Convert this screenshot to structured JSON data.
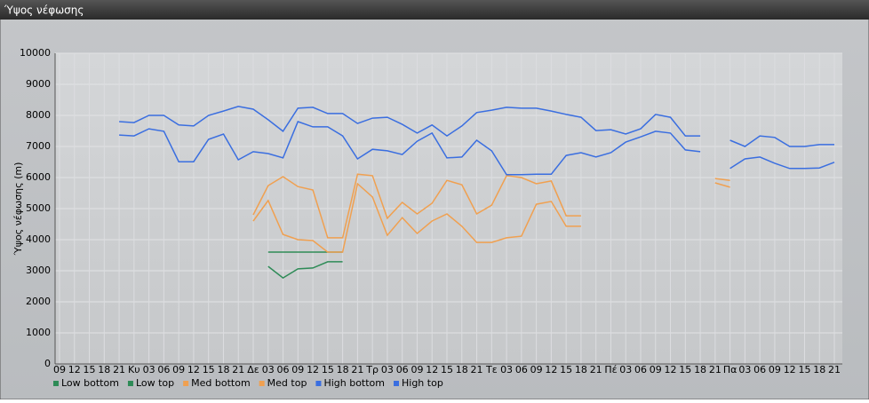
{
  "chart_data": {
    "type": "line",
    "title": "Ύψος νέφωσης",
    "y_label": "Ύψος νέφωσης (m)",
    "categories": [
      "09",
      "12",
      "15",
      "18",
      "21",
      "Κυ",
      "03",
      "06",
      "09",
      "12",
      "15",
      "18",
      "21",
      "Δε",
      "03",
      "06",
      "09",
      "12",
      "15",
      "18",
      "21",
      "Τρ",
      "03",
      "06",
      "09",
      "12",
      "15",
      "18",
      "21",
      "Τε",
      "03",
      "06",
      "09",
      "12",
      "15",
      "18",
      "21",
      "Πέ",
      "03",
      "06",
      "09",
      "12",
      "15",
      "18",
      "21",
      "Πα",
      "03",
      "06",
      "09",
      "12",
      "15",
      "18",
      "21"
    ],
    "ylim": [
      0,
      10000
    ],
    "yticks": [
      0,
      1000,
      2000,
      3000,
      4000,
      5000,
      6000,
      7000,
      8000,
      9000,
      10000
    ],
    "grid": true,
    "series": [
      {
        "name": "Low bottom",
        "color": "#2e8b57",
        "values": [
          null,
          null,
          null,
          null,
          null,
          null,
          null,
          null,
          null,
          null,
          null,
          null,
          null,
          null,
          3140,
          2770,
          3060,
          3090,
          3290,
          3290,
          null,
          null,
          null,
          null,
          null,
          null,
          null,
          null,
          null,
          null,
          null,
          null,
          null,
          null,
          null,
          null,
          null,
          null,
          null,
          null,
          null,
          null,
          null,
          null,
          null,
          null,
          null,
          null,
          null,
          null,
          null,
          null,
          null
        ]
      },
      {
        "name": "Low top",
        "color": "#2e8b57",
        "values": [
          null,
          null,
          null,
          null,
          null,
          null,
          null,
          null,
          null,
          null,
          null,
          null,
          null,
          null,
          3600,
          3600,
          3600,
          3600,
          3600,
          3600,
          null,
          null,
          null,
          null,
          null,
          null,
          null,
          null,
          null,
          null,
          null,
          null,
          null,
          null,
          null,
          null,
          null,
          null,
          null,
          null,
          null,
          null,
          null,
          null,
          null,
          null,
          null,
          null,
          null,
          null,
          null,
          null,
          null
        ]
      },
      {
        "name": "Med bottom",
        "color": "#f0a050",
        "values": [
          null,
          null,
          null,
          null,
          null,
          null,
          null,
          null,
          null,
          null,
          null,
          null,
          null,
          4600,
          5260,
          4170,
          4000,
          3970,
          3600,
          3600,
          5800,
          5370,
          4140,
          4710,
          4200,
          4600,
          4830,
          4430,
          3910,
          3910,
          4060,
          4110,
          5140,
          5230,
          4430,
          4430,
          null,
          null,
          null,
          null,
          null,
          null,
          null,
          null,
          5830,
          5690,
          null,
          null,
          null,
          null,
          null,
          null,
          null
        ]
      },
      {
        "name": "Med top",
        "color": "#f0a050",
        "values": [
          null,
          null,
          null,
          null,
          null,
          null,
          null,
          null,
          null,
          null,
          null,
          null,
          null,
          4800,
          5740,
          6030,
          5710,
          5600,
          4060,
          4060,
          6110,
          6060,
          4690,
          5200,
          4830,
          5170,
          5910,
          5770,
          4830,
          5110,
          6060,
          6000,
          5800,
          5890,
          4770,
          4770,
          null,
          null,
          null,
          null,
          null,
          null,
          null,
          null,
          5970,
          5910,
          null,
          null,
          null,
          null,
          null,
          null,
          null
        ]
      },
      {
        "name": "High bottom",
        "color": "#3a6ee0",
        "values": [
          null,
          null,
          null,
          null,
          7370,
          7340,
          7570,
          7490,
          6510,
          6510,
          7230,
          7400,
          6570,
          6830,
          6770,
          6630,
          7800,
          7630,
          7630,
          7340,
          6600,
          6910,
          6860,
          6740,
          7170,
          7430,
          6630,
          6660,
          7200,
          6860,
          6090,
          6090,
          6110,
          6110,
          6710,
          6800,
          6660,
          6800,
          7140,
          7310,
          7490,
          7430,
          6890,
          6830,
          null,
          6290,
          6600,
          6660,
          6460,
          6290,
          6290,
          6310,
          6490
        ]
      },
      {
        "name": "High top",
        "color": "#3a6ee0",
        "values": [
          null,
          null,
          null,
          null,
          7800,
          7770,
          8000,
          8000,
          7690,
          7660,
          8000,
          8140,
          8290,
          8200,
          7860,
          7490,
          8230,
          8260,
          8060,
          8060,
          7740,
          7910,
          7940,
          7710,
          7430,
          7690,
          7340,
          7660,
          8090,
          8170,
          8260,
          8230,
          8230,
          8140,
          8030,
          7940,
          7510,
          7540,
          7400,
          7570,
          8030,
          7940,
          7340,
          7340,
          null,
          7200,
          7000,
          7340,
          7290,
          7000,
          7000,
          7060,
          7060
        ]
      }
    ]
  }
}
